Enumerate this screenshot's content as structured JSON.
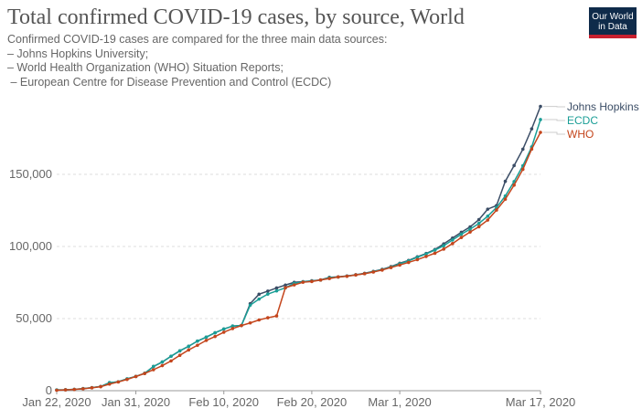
{
  "chart_data": {
    "type": "line",
    "title": "Total confirmed COVID-19 cases, by source, World",
    "subtitle": [
      "Confirmed COVID-19 cases are compared for the three main data sources:",
      "– Johns Hopkins University;",
      "– World Health Organization (WHO) Situation Reports;",
      " – European Centre for Disease Prevention and Control (ECDC)"
    ],
    "x_start": "2020-01-22",
    "x_end": "2020-03-17",
    "x_ticks": [
      "Jan 22, 2020",
      "Jan 31, 2020",
      "Feb 10, 2020",
      "Feb 20, 2020",
      "Mar 1, 2020",
      "Mar 17, 2020"
    ],
    "x_tick_days": [
      0,
      9,
      19,
      29,
      39,
      55
    ],
    "y_ticks": [
      "0",
      "50,000",
      "100,000",
      "150,000"
    ],
    "y_tick_values": [
      0,
      50000,
      100000,
      150000
    ],
    "grid": "horizontal dashed",
    "legend": "right (line end labels)",
    "series": [
      {
        "name": "Johns Hopkins",
        "color": "#3b4d66",
        "values": [
          555,
          654,
          941,
          1434,
          2118,
          2927,
          5578,
          6166,
          8234,
          9927,
          12038,
          16787,
          19881,
          23892,
          27635,
          30794,
          34391,
          37120,
          40150,
          42762,
          44802,
          45221,
          60368,
          66885,
          69030,
          71224,
          73258,
          75136,
          75639,
          76197,
          76819,
          78572,
          78958,
          79561,
          80406,
          81388,
          82746,
          84112,
          86011,
          88369,
          90306,
          92840,
          95120,
          97886,
          101801,
          105847,
          109821,
          113590,
          118620,
          125875,
          128352,
          145205,
          156101,
          167454,
          181574,
          197102
        ]
      },
      {
        "name": "ECDC",
        "color": "#1a9e96",
        "values": [
          555,
          654,
          941,
          1434,
          2118,
          2927,
          5578,
          6166,
          8234,
          9927,
          12038,
          16787,
          19881,
          23892,
          27635,
          30794,
          34391,
          37120,
          40150,
          42762,
          44802,
          45221,
          59300,
          63500,
          67000,
          69200,
          71300,
          74500,
          75500,
          76000,
          76700,
          78400,
          78800,
          79400,
          80300,
          81200,
          82600,
          83900,
          85700,
          88000,
          90000,
          92500,
          94800,
          97500,
          100500,
          104500,
          108500,
          112000,
          116000,
          121000,
          127000,
          135000,
          145000,
          156000,
          169000,
          188000
        ]
      },
      {
        "name": "WHO",
        "color": "#c4451c",
        "values": [
          314,
          581,
          846,
          1320,
          2014,
          2798,
          4593,
          6065,
          7818,
          9826,
          11953,
          14557,
          17391,
          20630,
          24554,
          28276,
          31481,
          34886,
          37558,
          40554,
          43103,
          45171,
          46997,
          49053,
          50580,
          51857,
          71429,
          73332,
          75204,
          75748,
          76769,
          77794,
          78811,
          79331,
          80239,
          81109,
          82294,
          83652,
          85403,
          87137,
          88948,
          90870,
          93090,
          95324,
          98192,
          102015,
          106211,
          110029,
          113702,
          118319,
          125260,
          132758,
          142539,
          153517,
          167515,
          179111
        ]
      }
    ]
  },
  "logo": "Our World in Data"
}
